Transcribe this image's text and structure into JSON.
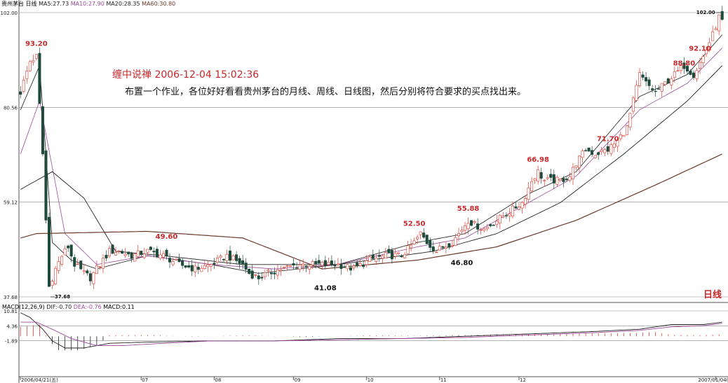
{
  "header": {
    "stock_name": "贵州茅台",
    "period": "日线",
    "ma": [
      {
        "label": "MA5:27.73",
        "color": "#1a1a1a"
      },
      {
        "label": "MA10:27.90",
        "color": "#9a4a9a"
      },
      {
        "label": "MA20:28.35",
        "color": "#222222"
      },
      {
        "label": "MA60:30.80",
        "color": "#6b3a2a"
      }
    ]
  },
  "post": {
    "title": "缠中说禅 2006-12-04 15:02:36",
    "body": "布置一个作业，各位好好看看贵州茅台的月线、周线、日线图，然后分别将符合要求的买点找出来。"
  },
  "watermark": "日线",
  "colors": {
    "up": "#d93a2f",
    "down": "#1f4a3c",
    "label": "#c8282a",
    "grid": "#888888"
  },
  "chart_data": {
    "type": "candlestick",
    "price_axis": {
      "min": 37.68,
      "max": 102.0,
      "ticks": [
        "102.00",
        "80.56",
        "59.12",
        "37.68"
      ]
    },
    "x_ticks": [
      "2006/04/21(五)",
      "07",
      "08",
      "09",
      "10",
      "11",
      "12",
      "2007/01/04(四)"
    ],
    "price_labels": [
      {
        "text": "93.20",
        "value": 93.2,
        "kind": "high"
      },
      {
        "text": "37.68",
        "value": 37.68,
        "kind": "low"
      },
      {
        "text": "49.60",
        "value": 49.6,
        "kind": "high"
      },
      {
        "text": "41.08",
        "value": 41.08,
        "kind": "low"
      },
      {
        "text": "52.50",
        "value": 52.5,
        "kind": "high"
      },
      {
        "text": "46.80",
        "value": 46.8,
        "kind": "low"
      },
      {
        "text": "55.88",
        "value": 55.88,
        "kind": "high"
      },
      {
        "text": "66.98",
        "value": 66.98,
        "kind": "high"
      },
      {
        "text": "71.70",
        "value": 71.7,
        "kind": "high"
      },
      {
        "text": "88.80",
        "value": 88.8,
        "kind": "high"
      },
      {
        "text": "92.10",
        "value": 92.1,
        "kind": "high"
      },
      {
        "text": "102.00",
        "value": 102.0,
        "kind": "high"
      }
    ],
    "close_path": [
      [
        0,
        84
      ],
      [
        3,
        91
      ],
      [
        5,
        92
      ],
      [
        7,
        70
      ],
      [
        9,
        40
      ],
      [
        11,
        44
      ],
      [
        13,
        47
      ],
      [
        15,
        49
      ],
      [
        17,
        45
      ],
      [
        20,
        43
      ],
      [
        22,
        42
      ],
      [
        25,
        45
      ],
      [
        28,
        48
      ],
      [
        31,
        48
      ],
      [
        35,
        47
      ],
      [
        40,
        48
      ],
      [
        45,
        47
      ],
      [
        50,
        45
      ],
      [
        55,
        44
      ],
      [
        60,
        45
      ],
      [
        65,
        47
      ],
      [
        70,
        45
      ],
      [
        72,
        43
      ],
      [
        75,
        42
      ],
      [
        78,
        43
      ],
      [
        82,
        44
      ],
      [
        88,
        45
      ],
      [
        95,
        45
      ],
      [
        100,
        45
      ],
      [
        105,
        44
      ],
      [
        110,
        46
      ],
      [
        115,
        47
      ],
      [
        120,
        47
      ],
      [
        124,
        50
      ],
      [
        126,
        52
      ],
      [
        128,
        50
      ],
      [
        131,
        48
      ],
      [
        133,
        49
      ],
      [
        136,
        50
      ],
      [
        139,
        53
      ],
      [
        141,
        55
      ],
      [
        143,
        54
      ],
      [
        146,
        53
      ],
      [
        150,
        55
      ],
      [
        154,
        57
      ],
      [
        158,
        59
      ],
      [
        161,
        64
      ],
      [
        163,
        66
      ],
      [
        165,
        64
      ],
      [
        170,
        64
      ],
      [
        173,
        65
      ],
      [
        175,
        68
      ],
      [
        178,
        71
      ],
      [
        181,
        70
      ],
      [
        185,
        71
      ],
      [
        188,
        73
      ],
      [
        191,
        76
      ],
      [
        193,
        82
      ],
      [
        195,
        88
      ],
      [
        197,
        86
      ],
      [
        200,
        84
      ],
      [
        203,
        86
      ],
      [
        206,
        88
      ],
      [
        209,
        90
      ],
      [
        212,
        88
      ],
      [
        215,
        92
      ],
      [
        218,
        97
      ],
      [
        220,
        101
      ],
      [
        221,
        100
      ]
    ],
    "moving_averages": [
      {
        "name": "MA5",
        "points": [
          [
            0,
            80
          ],
          [
            6,
            90
          ],
          [
            10,
            50
          ],
          [
            16,
            46
          ],
          [
            24,
            44
          ],
          [
            40,
            47
          ],
          [
            60,
            45
          ],
          [
            75,
            43
          ],
          [
            100,
            45
          ],
          [
            125,
            50
          ],
          [
            140,
            52
          ],
          [
            160,
            61
          ],
          [
            175,
            66
          ],
          [
            195,
            83
          ],
          [
            210,
            88
          ],
          [
            221,
            97
          ]
        ]
      },
      {
        "name": "MA10",
        "points": [
          [
            0,
            70
          ],
          [
            6,
            82
          ],
          [
            14,
            52
          ],
          [
            24,
            45
          ],
          [
            40,
            47
          ],
          [
            60,
            45
          ],
          [
            80,
            44
          ],
          [
            100,
            45
          ],
          [
            125,
            49
          ],
          [
            140,
            51
          ],
          [
            160,
            59
          ],
          [
            175,
            65
          ],
          [
            195,
            80
          ],
          [
            210,
            86
          ],
          [
            221,
            94
          ]
        ]
      },
      {
        "name": "MA20",
        "points": [
          [
            0,
            62
          ],
          [
            10,
            66
          ],
          [
            20,
            60
          ],
          [
            30,
            48
          ],
          [
            45,
            47
          ],
          [
            70,
            45
          ],
          [
            100,
            45
          ],
          [
            130,
            48
          ],
          [
            150,
            52
          ],
          [
            170,
            59
          ],
          [
            190,
            70
          ],
          [
            210,
            82
          ],
          [
            221,
            90
          ]
        ]
      },
      {
        "name": "MA60",
        "points": [
          [
            0,
            51
          ],
          [
            5,
            52
          ],
          [
            40,
            52.5
          ],
          [
            70,
            51
          ],
          [
            95,
            44
          ],
          [
            125,
            46
          ],
          [
            150,
            49
          ],
          [
            175,
            55
          ],
          [
            200,
            63
          ],
          [
            221,
            70
          ]
        ]
      }
    ],
    "macd": {
      "label": "MACD(12,26,9)",
      "dif": "DIF:-0.70",
      "dea": "DEA:-0.76",
      "value": "MACD:0.11",
      "axis": {
        "min": -8.0,
        "max": 10.81,
        "ticks": [
          "10.81",
          "4.36",
          "-1.89"
        ]
      },
      "dif_path": [
        [
          0,
          10
        ],
        [
          3,
          8
        ],
        [
          7,
          3
        ],
        [
          10,
          -2
        ],
        [
          14,
          -5
        ],
        [
          20,
          -5
        ],
        [
          28,
          -3
        ],
        [
          40,
          -2.5
        ],
        [
          60,
          -2
        ],
        [
          80,
          -2
        ],
        [
          100,
          -1
        ],
        [
          120,
          -1
        ],
        [
          140,
          0
        ],
        [
          160,
          1
        ],
        [
          180,
          2
        ],
        [
          195,
          3
        ],
        [
          205,
          5
        ],
        [
          215,
          5
        ],
        [
          221,
          6
        ]
      ],
      "dea_path": [
        [
          0,
          6
        ],
        [
          5,
          6
        ],
        [
          10,
          3
        ],
        [
          16,
          -1
        ],
        [
          24,
          -4
        ],
        [
          32,
          -4
        ],
        [
          45,
          -3
        ],
        [
          60,
          -2
        ],
        [
          80,
          -2
        ],
        [
          100,
          -1.5
        ],
        [
          120,
          -1
        ],
        [
          140,
          -0.5
        ],
        [
          160,
          0.5
        ],
        [
          180,
          1.5
        ],
        [
          195,
          2.5
        ],
        [
          205,
          4
        ],
        [
          215,
          4.5
        ],
        [
          221,
          5.5
        ]
      ],
      "hist_path": [
        [
          0,
          4
        ],
        [
          6,
          5
        ],
        [
          9,
          -2
        ],
        [
          12,
          -6
        ],
        [
          18,
          -6
        ],
        [
          24,
          -4
        ],
        [
          28,
          0.5
        ],
        [
          40,
          0.5
        ],
        [
          55,
          -0.2
        ],
        [
          70,
          0.4
        ],
        [
          90,
          -0.3
        ],
        [
          110,
          0.4
        ],
        [
          125,
          0.2
        ],
        [
          140,
          0.6
        ],
        [
          160,
          0.9
        ],
        [
          175,
          1.2
        ],
        [
          195,
          1.4
        ],
        [
          200,
          1.8
        ],
        [
          205,
          0.6
        ],
        [
          215,
          0.5
        ],
        [
          221,
          0.9
        ]
      ]
    }
  }
}
